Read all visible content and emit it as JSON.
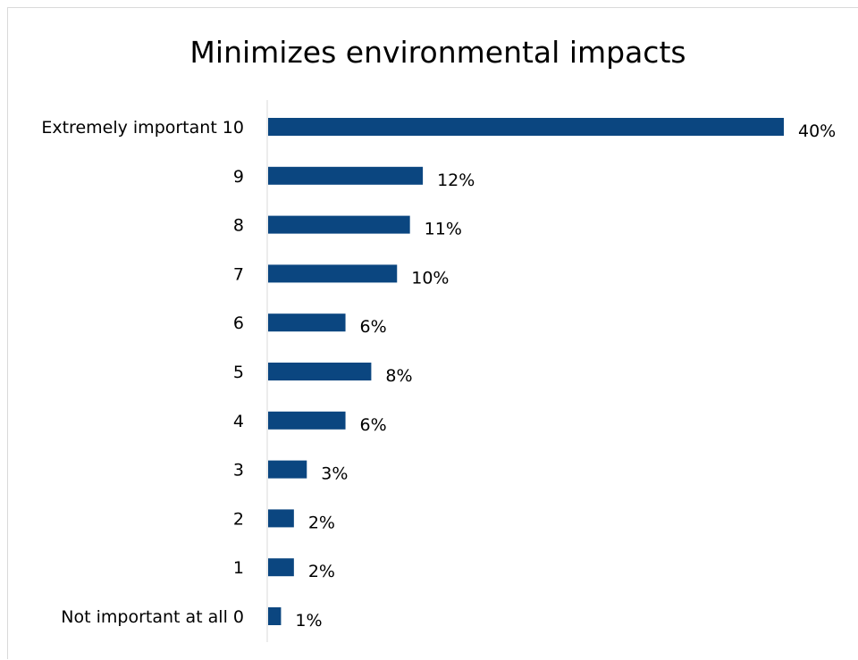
{
  "colors": {
    "bar": "#0b4680",
    "axis": "#d9d9d9",
    "text": "#000000",
    "frame": "#d9d9d9"
  },
  "chart_data": {
    "type": "bar",
    "orientation": "horizontal",
    "title": "Minimizes environmental impacts",
    "xlabel": "",
    "ylabel": "",
    "categories": [
      "Extremely important 10",
      "9",
      "8",
      "7",
      "6",
      "5",
      "4",
      "3",
      "2",
      "1",
      "Not important at all 0"
    ],
    "values": [
      40,
      12,
      11,
      10,
      6,
      8,
      6,
      3,
      2,
      2,
      1
    ],
    "data_labels": [
      "40%",
      "12%",
      "11%",
      "10%",
      "6%",
      "8%",
      "6%",
      "3%",
      "2%",
      "2%",
      "1%"
    ],
    "unit": "%",
    "xlim": [
      0,
      40
    ],
    "grid": false,
    "legend": "none"
  }
}
